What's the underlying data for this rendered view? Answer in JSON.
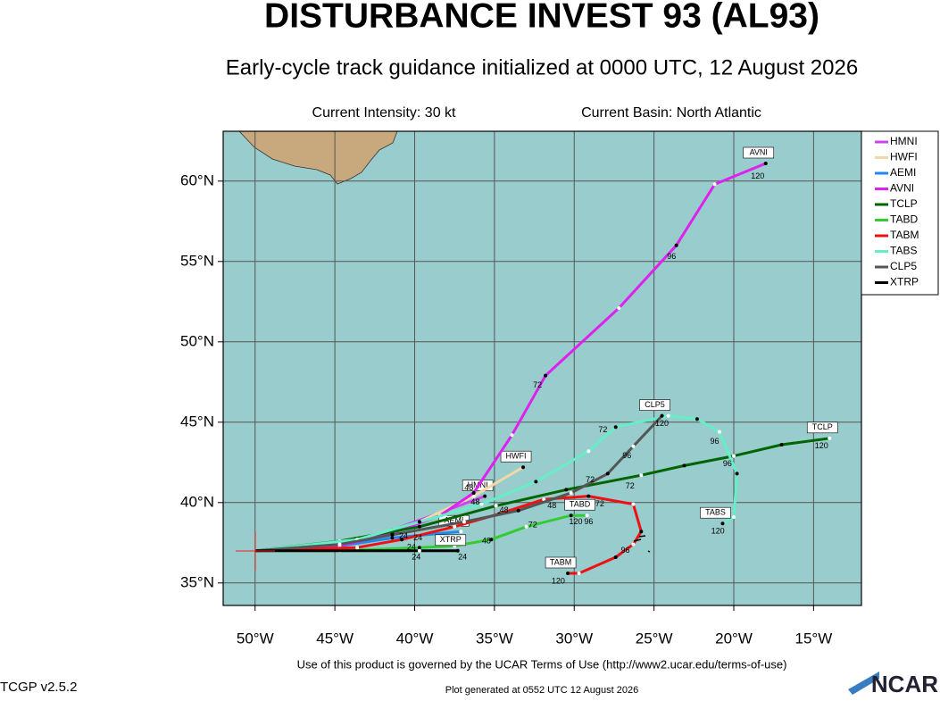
{
  "chart_data": {
    "type": "line",
    "title": "DISTURBANCE INVEST 93 (AL93)",
    "subtitle": "Early-cycle track guidance initialized at 0000 UTC, 12 August 2026",
    "intensity": "Current Intensity: 30 kt",
    "basin": "Current Basin: North Atlantic",
    "footer": "Use of this product is governed by the UCAR Terms of Use (http://www2.ucar.edu/terms-of-use)",
    "version": "TCGP v2.5.2",
    "generated": "Plot generated at 0552 UTC   12 August 2026",
    "logo": "NCAR",
    "xlim": [
      -52,
      -12
    ],
    "ylim": [
      33.6,
      63.1
    ],
    "xticks": [
      {
        "value": -50,
        "label": "50°W"
      },
      {
        "value": -45,
        "label": "45°W"
      },
      {
        "value": -40,
        "label": "40°W"
      },
      {
        "value": -35,
        "label": "35°W"
      },
      {
        "value": -30,
        "label": "30°W"
      },
      {
        "value": -25,
        "label": "25°W"
      },
      {
        "value": -20,
        "label": "20°W"
      },
      {
        "value": -15,
        "label": "15°W"
      }
    ],
    "yticks": [
      {
        "value": 35,
        "label": "35°N"
      },
      {
        "value": 40,
        "label": "40°N"
      },
      {
        "value": 45,
        "label": "45°N"
      },
      {
        "value": 50,
        "label": "50°N"
      },
      {
        "value": 55,
        "label": "55°N"
      },
      {
        "value": 60,
        "label": "60°N"
      }
    ],
    "grid": true,
    "legend": "right",
    "series": [
      {
        "name": "HMNI",
        "color": "#cc44ee",
        "x": [
          -50,
          -44.5,
          -41.4,
          -38.6,
          -35.6
        ],
        "values": [
          37.0,
          37.5,
          38.3,
          39.3,
          40.4
        ]
      },
      {
        "name": "HWFI",
        "color": "#f0d8a8",
        "x": [
          -50,
          -43.6,
          -39.7,
          -36.3,
          -33.2
        ],
        "values": [
          37.0,
          37.7,
          38.8,
          40.4,
          42.2
        ]
      },
      {
        "name": "AEMI",
        "color": "#2288ee",
        "x": [
          -50,
          -44.7,
          -41.4,
          -37.1
        ],
        "values": [
          37.0,
          37.3,
          37.8,
          38.2
        ]
      },
      {
        "name": "AVNI",
        "color": "#dd22ee",
        "x": [
          -50,
          -44.7,
          -41.4,
          -38.4,
          -36.3,
          -33.9,
          -31.8,
          -27.2,
          -23.6,
          -21.2,
          -18.0
        ],
        "values": [
          37.0,
          37.3,
          38.1,
          39.2,
          40.6,
          44.2,
          47.9,
          52.1,
          56.0,
          59.8,
          61.1
        ]
      },
      {
        "name": "TCLP",
        "color": "#006400",
        "x": [
          -50,
          -44.7,
          -39.7,
          -34.9,
          -30.5,
          -25.8,
          -23.1,
          -20.0,
          -17.0,
          -14.0
        ],
        "values": [
          37.0,
          37.6,
          38.5,
          39.8,
          40.8,
          41.7,
          42.3,
          42.9,
          43.6,
          44.0
        ]
      },
      {
        "name": "TABD",
        "color": "#33cc33",
        "x": [
          -50,
          -44.7,
          -39.7,
          -37.5,
          -35.2,
          -33.0,
          -30.2,
          -29.2
        ],
        "values": [
          37.0,
          37.0,
          37.2,
          37.3,
          37.7,
          38.5,
          39.2,
          39.2
        ]
      },
      {
        "name": "TABM",
        "color": "#ee1111",
        "x": [
          -50,
          -43.6,
          -40.8,
          -37.5,
          -34.7,
          -31.9,
          -29.1,
          -26.3,
          -25.8,
          -26.3,
          -27.4,
          -29.7,
          -30.4
        ],
        "values": [
          37.0,
          37.2,
          37.7,
          38.5,
          39.3,
          40.2,
          40.4,
          39.9,
          38.2,
          37.4,
          36.6,
          35.6,
          35.6
        ]
      },
      {
        "name": "TABS",
        "color": "#66eec8",
        "x": [
          -50,
          -43.6,
          -39.7,
          -35.8,
          -32.4,
          -29.1,
          -27.4,
          -24.1,
          -22.3,
          -20.9,
          -19.8,
          -20.0,
          -20.7
        ],
        "values": [
          37.0,
          37.7,
          38.8,
          39.9,
          41.3,
          43.2,
          44.7,
          45.4,
          45.2,
          44.4,
          41.8,
          39.1,
          38.7
        ]
      },
      {
        "name": "CLP5",
        "color": "#555555",
        "x": [
          -50,
          -44.7,
          -41.4,
          -36.9,
          -33.5,
          -30.2,
          -27.9,
          -26.3,
          -24.5
        ],
        "values": [
          37.0,
          37.4,
          38.0,
          38.8,
          39.5,
          40.6,
          41.8,
          43.5,
          45.4
        ]
      },
      {
        "name": "XTRP",
        "color": "#000000",
        "x": [
          -50,
          -39.7,
          -37.3
        ],
        "values": [
          37.0,
          37.0,
          37.0
        ]
      }
    ],
    "annotations": [
      {
        "text": "72",
        "x": -32.3,
        "y": 47.3
      },
      {
        "text": "96",
        "x": -23.9,
        "y": 55.3
      },
      {
        "text": "120",
        "x": -18.5,
        "y": 60.3
      },
      {
        "text": "120",
        "x": -24.5,
        "y": 44.9
      },
      {
        "text": "72",
        "x": -28.2,
        "y": 44.5
      },
      {
        "text": "96",
        "x": -21.2,
        "y": 43.8
      },
      {
        "text": "96",
        "x": -26.7,
        "y": 42.9
      },
      {
        "text": "96",
        "x": -20.4,
        "y": 42.4
      },
      {
        "text": "120",
        "x": -14.5,
        "y": 43.5
      },
      {
        "text": "72",
        "x": -29.0,
        "y": 41.4
      },
      {
        "text": "72",
        "x": -26.5,
        "y": 41.0
      },
      {
        "text": "48",
        "x": -36.6,
        "y": 40.9
      },
      {
        "text": "48",
        "x": -36.2,
        "y": 40.0
      },
      {
        "text": "48",
        "x": -31.4,
        "y": 39.8
      },
      {
        "text": "48",
        "x": -34.4,
        "y": 39.5
      },
      {
        "text": "72",
        "x": -28.4,
        "y": 39.9
      },
      {
        "text": "72",
        "x": -32.6,
        "y": 38.6
      },
      {
        "text": "48",
        "x": -35.5,
        "y": 37.6
      },
      {
        "text": "120",
        "x": -29.9,
        "y": 38.8
      },
      {
        "text": "96",
        "x": -29.1,
        "y": 38.8
      },
      {
        "text": "96",
        "x": -26.8,
        "y": 37.0
      },
      {
        "text": "24",
        "x": -40.7,
        "y": 37.9
      },
      {
        "text": "24",
        "x": -39.8,
        "y": 37.8
      },
      {
        "text": "24",
        "x": -40.2,
        "y": 37.2
      },
      {
        "text": "24",
        "x": -39.9,
        "y": 36.6
      },
      {
        "text": "24",
        "x": -37.0,
        "y": 36.6
      },
      {
        "text": "120",
        "x": -31.0,
        "y": 35.1
      },
      {
        "text": "120",
        "x": -21.0,
        "y": 38.2
      }
    ]
  }
}
